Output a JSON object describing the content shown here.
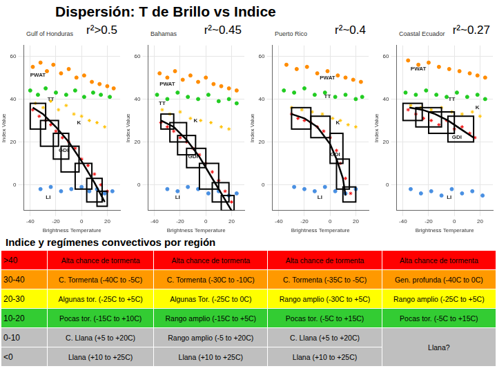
{
  "title": "Dispersión: T de Brillo vs Indice",
  "chart_data": [
    {
      "type": "scatter",
      "title": "Gulf of Honduras",
      "subtitle": "r²>0.5",
      "x_label": "Brightness Temperature",
      "y_label": "Index Value",
      "xlim": [
        -45,
        30
      ],
      "xticks": [
        -40,
        -20,
        0,
        20
      ],
      "ylim": [
        -12,
        65
      ],
      "yticks": [
        0,
        20,
        40,
        60
      ],
      "grid": true,
      "series": [
        {
          "name": "PWAT",
          "color": "#ff8c00",
          "marker": "circle",
          "label_at": [
            -34,
            51
          ],
          "x": [
            -38,
            -32,
            -27,
            -22,
            -16,
            -10,
            -4,
            2,
            8,
            14,
            20,
            25
          ],
          "values": [
            55,
            57,
            53,
            56,
            52,
            54,
            50,
            51,
            48,
            47,
            46,
            45
          ]
        },
        {
          "name": "TT",
          "color": "#22cc22",
          "marker": "circle",
          "label_at": [
            -24,
            40
          ],
          "x": [
            -40,
            -34,
            -28,
            -20,
            -12,
            -5,
            2,
            9,
            15,
            22
          ],
          "values": [
            44,
            42,
            45,
            43,
            42,
            44,
            41,
            43,
            42,
            41
          ]
        },
        {
          "name": "K",
          "color": "#ffc000",
          "marker": "star",
          "label_at": [
            -2,
            29
          ],
          "x": [
            -36,
            -30,
            -24,
            -18,
            -12,
            -6,
            0,
            6,
            12,
            18
          ],
          "values": [
            38,
            36,
            39,
            35,
            37,
            33,
            32,
            30,
            29,
            27
          ]
        },
        {
          "name": "GDI",
          "color": "#ee1111",
          "marker": "star",
          "label_at": [
            -14,
            16
          ],
          "x": [
            -38,
            -33,
            -28,
            -24,
            -20,
            -15,
            -10,
            -5,
            0,
            5,
            10,
            15,
            20
          ],
          "values": [
            35,
            32,
            30,
            28,
            25,
            22,
            20,
            17,
            12,
            9,
            5,
            0,
            -3
          ]
        },
        {
          "name": "LI",
          "color": "#4a90e2",
          "marker": "circle",
          "label_at": [
            -26,
            -6
          ],
          "x": [
            -32,
            -24,
            -16,
            -8,
            0,
            6,
            12,
            18,
            24
          ],
          "values": [
            -2,
            -1,
            -3,
            -2,
            -1,
            -3,
            -2,
            -4,
            -3
          ]
        },
        {
          "type": "line",
          "color": "#000000",
          "marker": "none",
          "x": [
            -38,
            -30,
            -20,
            -10,
            0,
            10,
            18
          ],
          "values": [
            36,
            33,
            27,
            20,
            11,
            1,
            -8
          ]
        }
      ],
      "boxes": [
        [
          -40,
          -28,
          26,
          38
        ],
        [
          -32,
          -18,
          18,
          30
        ],
        [
          -22,
          -10,
          12,
          24
        ],
        [
          -16,
          -2,
          6,
          18
        ],
        [
          -5,
          8,
          -2,
          10
        ],
        [
          4,
          16,
          -8,
          3
        ],
        [
          12,
          20,
          -10,
          -3
        ]
      ]
    },
    {
      "type": "scatter",
      "title": "Bahamas",
      "subtitle": "r²~0.45",
      "x_label": "Brightness Temperature",
      "y_label": "Index Value",
      "xlim": [
        -45,
        30
      ],
      "xticks": [
        -40,
        -20,
        0,
        20
      ],
      "ylim": [
        -12,
        65
      ],
      "yticks": [
        0,
        20,
        40,
        60
      ],
      "grid": true,
      "series": [
        {
          "name": "PWAT",
          "color": "#ff8c00",
          "marker": "circle",
          "label_at": [
            -30,
            47
          ],
          "x": [
            -36,
            -30,
            -24,
            -18,
            -12,
            -6,
            0,
            6,
            12,
            18,
            24
          ],
          "values": [
            52,
            50,
            53,
            49,
            51,
            48,
            50,
            47,
            46,
            45,
            44
          ]
        },
        {
          "name": "TT",
          "color": "#22cc22",
          "marker": "circle",
          "label_at": [
            -34,
            38
          ],
          "x": [
            -38,
            -30,
            -22,
            -14,
            -6,
            2,
            10,
            18,
            24
          ],
          "values": [
            42,
            40,
            43,
            41,
            40,
            42,
            39,
            40,
            38
          ]
        },
        {
          "name": "K",
          "color": "#ffc000",
          "marker": "star",
          "label_at": [
            -8,
            30
          ],
          "x": [
            -34,
            -28,
            -20,
            -12,
            -4,
            4,
            12,
            18
          ],
          "values": [
            35,
            33,
            34,
            31,
            30,
            29,
            27,
            26
          ]
        },
        {
          "name": "GDI",
          "color": "#ee1111",
          "marker": "star",
          "label_at": [
            -10,
            13
          ],
          "x": [
            -35,
            -30,
            -25,
            -20,
            -15,
            -10,
            -5,
            0,
            5,
            10,
            15,
            20
          ],
          "values": [
            29,
            27,
            25,
            22,
            20,
            17,
            14,
            10,
            6,
            2,
            -3,
            -8
          ]
        },
        {
          "name": "LI",
          "color": "#4a90e2",
          "marker": "circle",
          "label_at": [
            -22,
            -6
          ],
          "x": [
            -30,
            -22,
            -14,
            -6,
            2,
            10,
            18,
            24
          ],
          "values": [
            -2,
            -3,
            -1,
            -2,
            -4,
            -3,
            -5,
            -4
          ]
        },
        {
          "type": "line",
          "color": "#000000",
          "marker": "none",
          "x": [
            -35,
            -25,
            -15,
            -5,
            5,
            12,
            20
          ],
          "values": [
            30,
            27,
            21,
            13,
            3,
            -4,
            -12
          ]
        }
      ],
      "boxes": [
        [
          -35,
          -25,
          26,
          33
        ],
        [
          -28,
          -15,
          20,
          29
        ],
        [
          -22,
          -8,
          14,
          23
        ],
        [
          -15,
          0,
          8,
          17
        ],
        [
          -5,
          10,
          -2,
          10
        ],
        [
          5,
          18,
          -8,
          1
        ],
        [
          12,
          22,
          -12,
          -5
        ]
      ]
    },
    {
      "type": "scatter",
      "title": "Puerto Rico",
      "subtitle": "r²~0.4",
      "x_label": "Brightness Temperature",
      "y_label": "Index Value",
      "xlim": [
        -45,
        30
      ],
      "xticks": [
        -40,
        -20,
        0,
        20
      ],
      "ylim": [
        -12,
        65
      ],
      "yticks": [
        0,
        20,
        40,
        60
      ],
      "grid": true,
      "series": [
        {
          "name": "PWAT",
          "color": "#ff8c00",
          "marker": "circle",
          "label_at": [
            -2,
            50
          ],
          "x": [
            -34,
            -26,
            -18,
            -10,
            -2,
            6,
            12,
            18,
            24
          ],
          "values": [
            56,
            54,
            55,
            52,
            53,
            51,
            50,
            49,
            48
          ]
        },
        {
          "name": "TT",
          "color": "#22cc22",
          "marker": "circle",
          "label_at": [
            -2,
            41
          ],
          "x": [
            -36,
            -28,
            -20,
            -12,
            -4,
            4,
            12,
            20,
            25
          ],
          "values": [
            44,
            43,
            45,
            42,
            43,
            41,
            42,
            40,
            41
          ]
        },
        {
          "name": "K",
          "color": "#ffc000",
          "marker": "star",
          "label_at": [
            6,
            29
          ],
          "x": [
            -30,
            -22,
            -14,
            -6,
            2,
            8,
            14,
            20
          ],
          "values": [
            36,
            35,
            34,
            33,
            31,
            30,
            28,
            27
          ]
        },
        {
          "name": "GDI",
          "color": "#ee1111",
          "marker": "star",
          "label_at": [
            4,
            14
          ],
          "x": [
            -30,
            -25,
            -20,
            -15,
            -10,
            -5,
            0,
            5,
            8,
            12,
            16
          ],
          "values": [
            33,
            31,
            30,
            29,
            27,
            25,
            22,
            16,
            10,
            3,
            -4
          ]
        },
        {
          "name": "LI",
          "color": "#4a90e2",
          "marker": "circle",
          "label_at": [
            -8,
            -6
          ],
          "x": [
            -28,
            -20,
            -12,
            -4,
            4,
            12,
            20
          ],
          "values": [
            -1,
            -2,
            -3,
            -1,
            -3,
            -4,
            -2
          ]
        },
        {
          "type": "line",
          "color": "#000000",
          "marker": "none",
          "x": [
            -30,
            -20,
            -10,
            0,
            5,
            10,
            12
          ],
          "values": [
            33,
            31,
            27,
            19,
            12,
            3,
            -5
          ]
        }
      ],
      "boxes": [
        [
          -30,
          -15,
          26,
          36
        ],
        [
          -15,
          0,
          22,
          32
        ],
        [
          0,
          10,
          10,
          24
        ],
        [
          5,
          15,
          -2,
          12
        ],
        [
          10,
          20,
          -8,
          -1
        ]
      ]
    },
    {
      "type": "scatter",
      "title": "Coastal Ecuador",
      "subtitle": "r²~0.27",
      "x_label": "Brightness Temperature",
      "y_label": "Index Value",
      "xlim": [
        -45,
        30
      ],
      "xticks": [
        -40,
        -20,
        0,
        20
      ],
      "ylim": [
        -12,
        65
      ],
      "yticks": [
        0,
        20,
        40,
        60
      ],
      "grid": true,
      "series": [
        {
          "name": "PWAT",
          "color": "#ff8c00",
          "marker": "circle",
          "label_at": [
            -28,
            54
          ],
          "x": [
            -36,
            -28,
            -20,
            -12,
            -4,
            4,
            12,
            18,
            24
          ],
          "values": [
            58,
            56,
            57,
            55,
            54,
            53,
            52,
            51,
            50
          ]
        },
        {
          "name": "TT",
          "color": "#22cc22",
          "marker": "circle",
          "label_at": [
            -2,
            40
          ],
          "x": [
            -38,
            -30,
            -22,
            -14,
            -6,
            2,
            10,
            18,
            24
          ],
          "values": [
            43,
            42,
            44,
            42,
            41,
            43,
            41,
            42,
            40
          ]
        },
        {
          "name": "K",
          "color": "#ffc000",
          "marker": "star",
          "label_at": [
            18,
            36
          ],
          "x": [
            -34,
            -26,
            -18,
            -10,
            -2,
            6,
            14,
            20
          ],
          "values": [
            37,
            36,
            35,
            36,
            34,
            33,
            34,
            32
          ]
        },
        {
          "name": "GDI",
          "color": "#ee1111",
          "marker": "star",
          "label_at": [
            2,
            22
          ],
          "x": [
            -36,
            -30,
            -24,
            -18,
            -12,
            -6,
            0,
            6,
            12,
            16
          ],
          "values": [
            35,
            33,
            31,
            30,
            28,
            30,
            26,
            27,
            24,
            22
          ]
        },
        {
          "name": "LI",
          "color": "#4a90e2",
          "marker": "circle",
          "label_at": [
            -4,
            -6
          ],
          "x": [
            -34,
            -26,
            -18,
            -10,
            -2,
            6,
            14,
            22
          ],
          "values": [
            -2,
            -4,
            -3,
            -5,
            -2,
            -4,
            -3,
            -5
          ]
        },
        {
          "type": "line",
          "color": "#000000",
          "marker": "none",
          "x": [
            -35,
            -25,
            -15,
            -5,
            5,
            15
          ],
          "values": [
            36,
            35,
            33,
            30,
            26,
            22
          ]
        }
      ],
      "boxes": [
        [
          -40,
          -25,
          30,
          38
        ],
        [
          -30,
          -10,
          27,
          36
        ],
        [
          -20,
          0,
          24,
          34
        ],
        [
          -5,
          15,
          20,
          32
        ]
      ]
    }
  ],
  "table": {
    "title": "Indice y regímenes convectivos por región",
    "rows": [
      {
        "color": "#ff0000",
        "cells": [
          ">40",
          "Alta chance de tormenta",
          "Alta chance de tormenta",
          "Alta chance de tormenta",
          "Alta chance de tormenta"
        ]
      },
      {
        "color": "#ff9900",
        "cells": [
          "30-40",
          "C. Tormenta (-40C to -5C)",
          "C. Tormenta (-30C to -10C)",
          "C. Tormenta (-35C to -5C)",
          "Gen. profunda (-40C to 0C)"
        ]
      },
      {
        "color": "#ffff00",
        "cells": [
          "20-30",
          "Algunas tor. (-25C to +5C)",
          "Algunas Tor. (-25C to 0C)",
          "Rango amplio (-30C to +5C)",
          "Rango amplio (-25C to +5C)"
        ]
      },
      {
        "color": "#33cc33",
        "cells": [
          "10-20",
          "Pocas tor. (-15C to +10C)",
          "Rango amplio (-15C to +5C)",
          "Pocas tor. (-5C to +15C)",
          "Pocas tor. (-5C to +15C)"
        ]
      },
      {
        "color": "#bfbfbf",
        "cells": [
          "0-10",
          "C. Llana (+5 to +20C)",
          "Rango amplio (-5 to +20C)",
          "C. Llana (+5 to +20C)",
          "Llana?"
        ]
      },
      {
        "color": "#bfbfbf",
        "cells": [
          "<0",
          "Llana (+10 to +25C)",
          "Llana (+10 to +25C)",
          "Llana (+10 to +25C)"
        ]
      }
    ]
  }
}
